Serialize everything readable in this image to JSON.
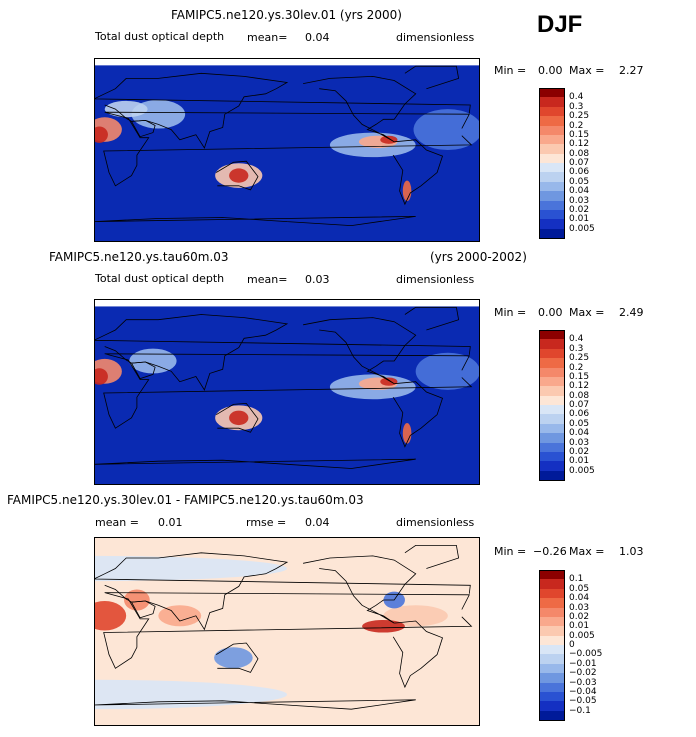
{
  "season": "DJF",
  "panels": [
    {
      "title": "FAMIPC5.ne120.ys.30lev.01 (yrs 2000)",
      "title_right": "",
      "subtitle": "Total dust optical depth",
      "mean_label": "mean=",
      "mean_value": "0.04",
      "rmse_label": "",
      "rmse_value": "",
      "units": "dimensionless",
      "min_label": "Min =",
      "min_value": "0.00",
      "max_label": "Max =",
      "max_value": "2.27",
      "colorbar": {
        "levels": [
          "0.4",
          "0.3",
          "0.25",
          "0.2",
          "0.15",
          "0.12",
          "0.08",
          "0.07",
          "0.06",
          "0.05",
          "0.04",
          "0.03",
          "0.02",
          "0.01",
          "0.005"
        ],
        "colors": [
          "#8b0000",
          "#c8281e",
          "#e0462d",
          "#ee6a45",
          "#f4886a",
          "#f9a88c",
          "#fbc9b0",
          "#fde6d6",
          "#d9e6f6",
          "#bcd2f0",
          "#98b8ea",
          "#6f97e0",
          "#4a74da",
          "#2a52d2",
          "#1430c2",
          "#001a99"
        ]
      },
      "chart_data": {
        "type": "heatmap",
        "variable": "Total dust optical depth",
        "units": "dimensionless",
        "mean": 0.04,
        "min": 0.0,
        "max": 2.27,
        "contour_levels": [
          0.005,
          0.01,
          0.02,
          0.03,
          0.04,
          0.05,
          0.06,
          0.07,
          0.08,
          0.12,
          0.15,
          0.2,
          0.25,
          0.3,
          0.4
        ],
        "base_color": "#0a2ab2",
        "blobs": [
          {
            "lon": -30,
            "lat": 20,
            "rx": 32,
            "ry": 20,
            "color": "#4a74da"
          },
          {
            "lon": 10,
            "lat": 20,
            "rx": 16,
            "ry": 12,
            "color": "#f4886a"
          },
          {
            "lon": 5,
            "lat": 15,
            "rx": 8,
            "ry": 8,
            "color": "#c8281e"
          },
          {
            "lon": 60,
            "lat": 35,
            "rx": 25,
            "ry": 14,
            "color": "#98b8ea"
          },
          {
            "lon": 30,
            "lat": 40,
            "rx": 20,
            "ry": 8,
            "color": "#bcd2f0"
          },
          {
            "lon": 135,
            "lat": -25,
            "rx": 22,
            "ry": 12,
            "color": "#fbc9b0"
          },
          {
            "lon": 135,
            "lat": -25,
            "rx": 9,
            "ry": 7,
            "color": "#c8281e"
          },
          {
            "lon": -100,
            "lat": 5,
            "rx": 40,
            "ry": 12,
            "color": "#98b8ea"
          },
          {
            "lon": -95,
            "lat": 8,
            "rx": 18,
            "ry": 6,
            "color": "#f9a88c"
          },
          {
            "lon": -85,
            "lat": 10,
            "rx": 8,
            "ry": 4,
            "color": "#c8281e"
          },
          {
            "lon": -68,
            "lat": -40,
            "rx": 4,
            "ry": 10,
            "color": "#ee6a45"
          }
        ]
      }
    },
    {
      "title": "FAMIPC5.ne120.ys.tau60m.03",
      "title_right": "(yrs 2000-2002)",
      "subtitle": "Total dust optical depth",
      "mean_label": "mean=",
      "mean_value": "0.03",
      "rmse_label": "",
      "rmse_value": "",
      "units": "dimensionless",
      "min_label": "Min =",
      "min_value": "0.00",
      "max_label": "Max =",
      "max_value": "2.49",
      "colorbar": {
        "levels": [
          "0.4",
          "0.3",
          "0.25",
          "0.2",
          "0.15",
          "0.12",
          "0.08",
          "0.07",
          "0.06",
          "0.05",
          "0.04",
          "0.03",
          "0.02",
          "0.01",
          "0.005"
        ],
        "colors": [
          "#8b0000",
          "#c8281e",
          "#e0462d",
          "#ee6a45",
          "#f4886a",
          "#f9a88c",
          "#fbc9b0",
          "#fde6d6",
          "#d9e6f6",
          "#bcd2f0",
          "#98b8ea",
          "#6f97e0",
          "#4a74da",
          "#2a52d2",
          "#1430c2",
          "#001a99"
        ]
      },
      "chart_data": {
        "type": "heatmap",
        "variable": "Total dust optical depth",
        "units": "dimensionless",
        "mean": 0.03,
        "min": 0.0,
        "max": 2.49,
        "contour_levels": [
          0.005,
          0.01,
          0.02,
          0.03,
          0.04,
          0.05,
          0.06,
          0.07,
          0.08,
          0.12,
          0.15,
          0.2,
          0.25,
          0.3,
          0.4
        ],
        "base_color": "#0a2ab2",
        "blobs": [
          {
            "lon": -30,
            "lat": 20,
            "rx": 30,
            "ry": 18,
            "color": "#4a74da"
          },
          {
            "lon": 10,
            "lat": 20,
            "rx": 16,
            "ry": 12,
            "color": "#f4886a"
          },
          {
            "lon": 5,
            "lat": 15,
            "rx": 8,
            "ry": 8,
            "color": "#c8281e"
          },
          {
            "lon": 55,
            "lat": 30,
            "rx": 22,
            "ry": 12,
            "color": "#98b8ea"
          },
          {
            "lon": 135,
            "lat": -25,
            "rx": 22,
            "ry": 12,
            "color": "#fbc9b0"
          },
          {
            "lon": 135,
            "lat": -25,
            "rx": 9,
            "ry": 7,
            "color": "#c8281e"
          },
          {
            "lon": -100,
            "lat": 5,
            "rx": 40,
            "ry": 12,
            "color": "#98b8ea"
          },
          {
            "lon": -95,
            "lat": 8,
            "rx": 18,
            "ry": 6,
            "color": "#f9a88c"
          },
          {
            "lon": -85,
            "lat": 10,
            "rx": 8,
            "ry": 4,
            "color": "#c8281e"
          },
          {
            "lon": -68,
            "lat": -40,
            "rx": 4,
            "ry": 10,
            "color": "#ee6a45"
          }
        ]
      }
    },
    {
      "title": "FAMIPC5.ne120.ys.30lev.01 - FAMIPC5.ne120.ys.tau60m.03",
      "title_right": "",
      "subtitle": "",
      "mean_label": "mean =",
      "mean_value": "0.01",
      "rmse_label": "rmse =",
      "rmse_value": "0.04",
      "units": "dimensionless",
      "min_label": "Min =",
      "min_value": "−0.26",
      "max_label": "Max =",
      "max_value": "1.03",
      "colorbar": {
        "levels": [
          "0.1",
          "0.05",
          "0.04",
          "0.03",
          "0.02",
          "0.01",
          "0.005",
          "0",
          "−0.005",
          "−0.01",
          "−0.02",
          "−0.03",
          "−0.04",
          "−0.05",
          "−0.1"
        ],
        "colors": [
          "#8b0000",
          "#c8281e",
          "#e0462d",
          "#ee6a45",
          "#f4886a",
          "#f9a88c",
          "#fbc9b0",
          "#fde6d6",
          "#d9e6f6",
          "#bcd2f0",
          "#98b8ea",
          "#6f97e0",
          "#4a74da",
          "#2a52d2",
          "#1430c2",
          "#001a99"
        ]
      },
      "chart_data": {
        "type": "heatmap",
        "variable": "Difference in total dust optical depth",
        "units": "dimensionless",
        "mean": 0.01,
        "rmse": 0.04,
        "min": -0.26,
        "max": 1.03,
        "contour_levels": [
          -0.1,
          -0.05,
          -0.04,
          -0.03,
          -0.02,
          -0.01,
          -0.005,
          0,
          0.005,
          0.01,
          0.02,
          0.03,
          0.04,
          0.05,
          0.1
        ],
        "base_color": "#fde6d6",
        "blobs": [
          {
            "lon": 0,
            "lat": 60,
            "rx": 180,
            "ry": 12,
            "color": "#d9e6f6"
          },
          {
            "lon": 0,
            "lat": -60,
            "rx": 180,
            "ry": 14,
            "color": "#d9e6f6"
          },
          {
            "lon": 10,
            "lat": 15,
            "rx": 20,
            "ry": 14,
            "color": "#e0462d"
          },
          {
            "lon": 40,
            "lat": 30,
            "rx": 12,
            "ry": 10,
            "color": "#f4886a"
          },
          {
            "lon": 80,
            "lat": 15,
            "rx": 20,
            "ry": 10,
            "color": "#f9a88c"
          },
          {
            "lon": 130,
            "lat": -25,
            "rx": 18,
            "ry": 10,
            "color": "#6f97e0"
          },
          {
            "lon": -60,
            "lat": 15,
            "rx": 30,
            "ry": 10,
            "color": "#fbc9b0"
          },
          {
            "lon": -90,
            "lat": 5,
            "rx": 20,
            "ry": 6,
            "color": "#c8281e"
          },
          {
            "lon": -80,
            "lat": 30,
            "rx": 10,
            "ry": 8,
            "color": "#4a74da"
          }
        ]
      }
    }
  ]
}
